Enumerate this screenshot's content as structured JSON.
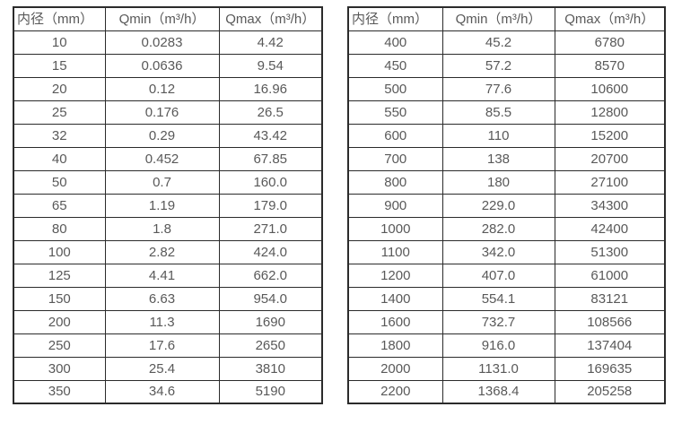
{
  "colors": {
    "background": "#ffffff",
    "border": "#2b2b2b",
    "text": "#595959"
  },
  "tables": [
    {
      "name": "flow-spec-small-diameters",
      "headers": [
        "内径（mm）",
        "Qmin（m³/h）",
        "Qmax（m³/h）"
      ],
      "rows": [
        [
          "10",
          "0.0283",
          "4.42"
        ],
        [
          "15",
          "0.0636",
          "9.54"
        ],
        [
          "20",
          "0.12",
          "16.96"
        ],
        [
          "25",
          "0.176",
          "26.5"
        ],
        [
          "32",
          "0.29",
          "43.42"
        ],
        [
          "40",
          "0.452",
          "67.85"
        ],
        [
          "50",
          "0.7",
          "160.0"
        ],
        [
          "65",
          "1.19",
          "179.0"
        ],
        [
          "80",
          "1.8",
          "271.0"
        ],
        [
          "100",
          "2.82",
          "424.0"
        ],
        [
          "125",
          "4.41",
          "662.0"
        ],
        [
          "150",
          "6.63",
          "954.0"
        ],
        [
          "200",
          "11.3",
          "1690"
        ],
        [
          "250",
          "17.6",
          "2650"
        ],
        [
          "300",
          "25.4",
          "3810"
        ],
        [
          "350",
          "34.6",
          "5190"
        ]
      ]
    },
    {
      "name": "flow-spec-large-diameters",
      "headers": [
        "内径（mm）",
        "Qmin（m³/h）",
        "Qmax（m³/h）"
      ],
      "rows": [
        [
          "400",
          "45.2",
          "6780"
        ],
        [
          "450",
          "57.2",
          "8570"
        ],
        [
          "500",
          "77.6",
          "10600"
        ],
        [
          "550",
          "85.5",
          "12800"
        ],
        [
          "600",
          "110",
          "15200"
        ],
        [
          "700",
          "138",
          "20700"
        ],
        [
          "800",
          "180",
          "27100"
        ],
        [
          "900",
          "229.0",
          "34300"
        ],
        [
          "1000",
          "282.0",
          "42400"
        ],
        [
          "1100",
          "342.0",
          "51300"
        ],
        [
          "1200",
          "407.0",
          "61000"
        ],
        [
          "1400",
          "554.1",
          "83121"
        ],
        [
          "1600",
          "732.7",
          "108566"
        ],
        [
          "1800",
          "916.0",
          "137404"
        ],
        [
          "2000",
          "1131.0",
          "169635"
        ],
        [
          "2200",
          "1368.4",
          "205258"
        ]
      ]
    }
  ]
}
